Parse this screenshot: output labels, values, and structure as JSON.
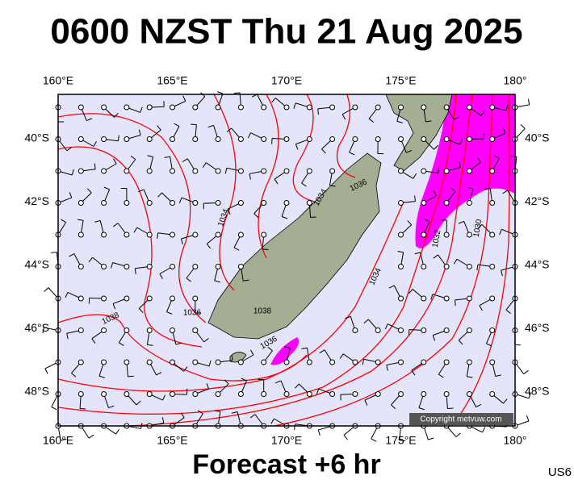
{
  "title": "0600 NZST Thu 21 Aug 2025",
  "longitude_labels": [
    "160°E",
    "165°E",
    "170°E",
    "175°E",
    "180°"
  ],
  "latitude_labels": [
    "40°S",
    "42°S",
    "44°S",
    "46°S",
    "48°S"
  ],
  "isobar_labels": [
    "1034",
    "1034",
    "1036",
    "1038",
    "1036",
    "1038",
    "1036",
    "1034",
    "1032",
    "1030"
  ],
  "copyright": "Copyright metvuw.com",
  "footer": "Forecast +6 hr",
  "code": "US6"
}
